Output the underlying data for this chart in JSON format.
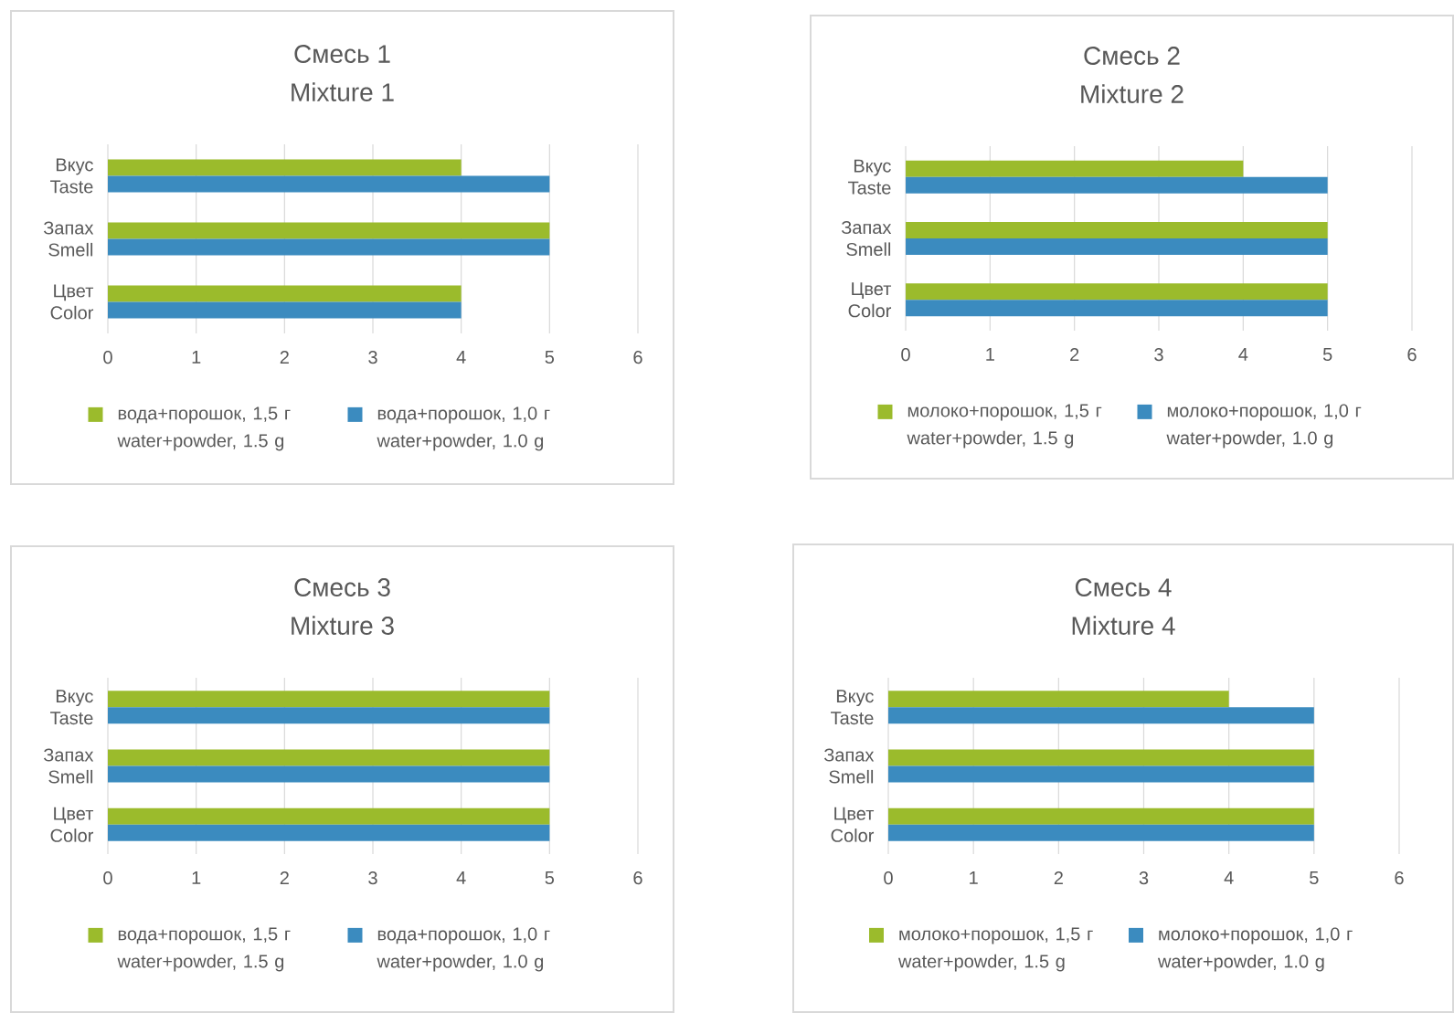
{
  "chart_data": [
    {
      "type": "bar",
      "orientation": "horizontal",
      "title": "Смесь 1",
      "subtitle": "Mixture 1",
      "categories": [
        "Вкус Taste",
        "Запах Smell",
        "Цвет Color"
      ],
      "series": [
        {
          "name": "вода+порошок, 1,5 г water+powder, 1.5 g",
          "color": "#9bbb2c",
          "values": [
            4,
            5,
            4
          ]
        },
        {
          "name": "вода+порошок, 1,0 г water+powder, 1.0 g",
          "color": "#3b8bbf",
          "values": [
            5,
            5,
            4
          ]
        }
      ],
      "xlim": [
        0,
        6
      ],
      "xticks": [
        0,
        1,
        2,
        3,
        4,
        5,
        6
      ],
      "grid": "x",
      "legend": "bottom"
    },
    {
      "type": "bar",
      "orientation": "horizontal",
      "title": "Смесь 2",
      "subtitle": "Mixture 2",
      "categories": [
        "Вкус Taste",
        "Запах Smell",
        "Цвет Color"
      ],
      "series": [
        {
          "name": "молоко+порошок, 1,5 г water+powder, 1.5 g",
          "color": "#9bbb2c",
          "values": [
            4,
            5,
            5
          ]
        },
        {
          "name": "молоко+порошок, 1,0 г water+powder, 1.0 g",
          "color": "#3b8bbf",
          "values": [
            5,
            5,
            5
          ]
        }
      ],
      "xlim": [
        0,
        6
      ],
      "xticks": [
        0,
        1,
        2,
        3,
        4,
        5,
        6
      ],
      "grid": "x",
      "legend": "bottom"
    },
    {
      "type": "bar",
      "orientation": "horizontal",
      "title": "Смесь 3",
      "subtitle": "Mixture 3",
      "categories": [
        "Вкус Taste",
        "Запах Smell",
        "Цвет Color"
      ],
      "series": [
        {
          "name": "вода+порошок, 1,5 г water+powder, 1.5 g",
          "color": "#9bbb2c",
          "values": [
            5,
            5,
            5
          ]
        },
        {
          "name": "вода+порошок, 1,0 г water+powder, 1.0 g",
          "color": "#3b8bbf",
          "values": [
            5,
            5,
            5
          ]
        }
      ],
      "xlim": [
        0,
        6
      ],
      "xticks": [
        0,
        1,
        2,
        3,
        4,
        5,
        6
      ],
      "grid": "x",
      "legend": "bottom"
    },
    {
      "type": "bar",
      "orientation": "horizontal",
      "title": "Смесь 4",
      "subtitle": "Mixture 4",
      "categories": [
        "Вкус Taste",
        "Запах Smell",
        "Цвет Color"
      ],
      "series": [
        {
          "name": "молоко+порошок, 1,5 г water+powder, 1.5 g",
          "color": "#9bbb2c",
          "values": [
            4,
            5,
            5
          ]
        },
        {
          "name": "молоко+порошок, 1,0 г water+powder, 1.0 g",
          "color": "#3b8bbf",
          "values": [
            5,
            5,
            5
          ]
        }
      ],
      "xlim": [
        0,
        6
      ],
      "xticks": [
        0,
        1,
        2,
        3,
        4,
        5,
        6
      ],
      "grid": "x",
      "legend": "bottom"
    }
  ]
}
